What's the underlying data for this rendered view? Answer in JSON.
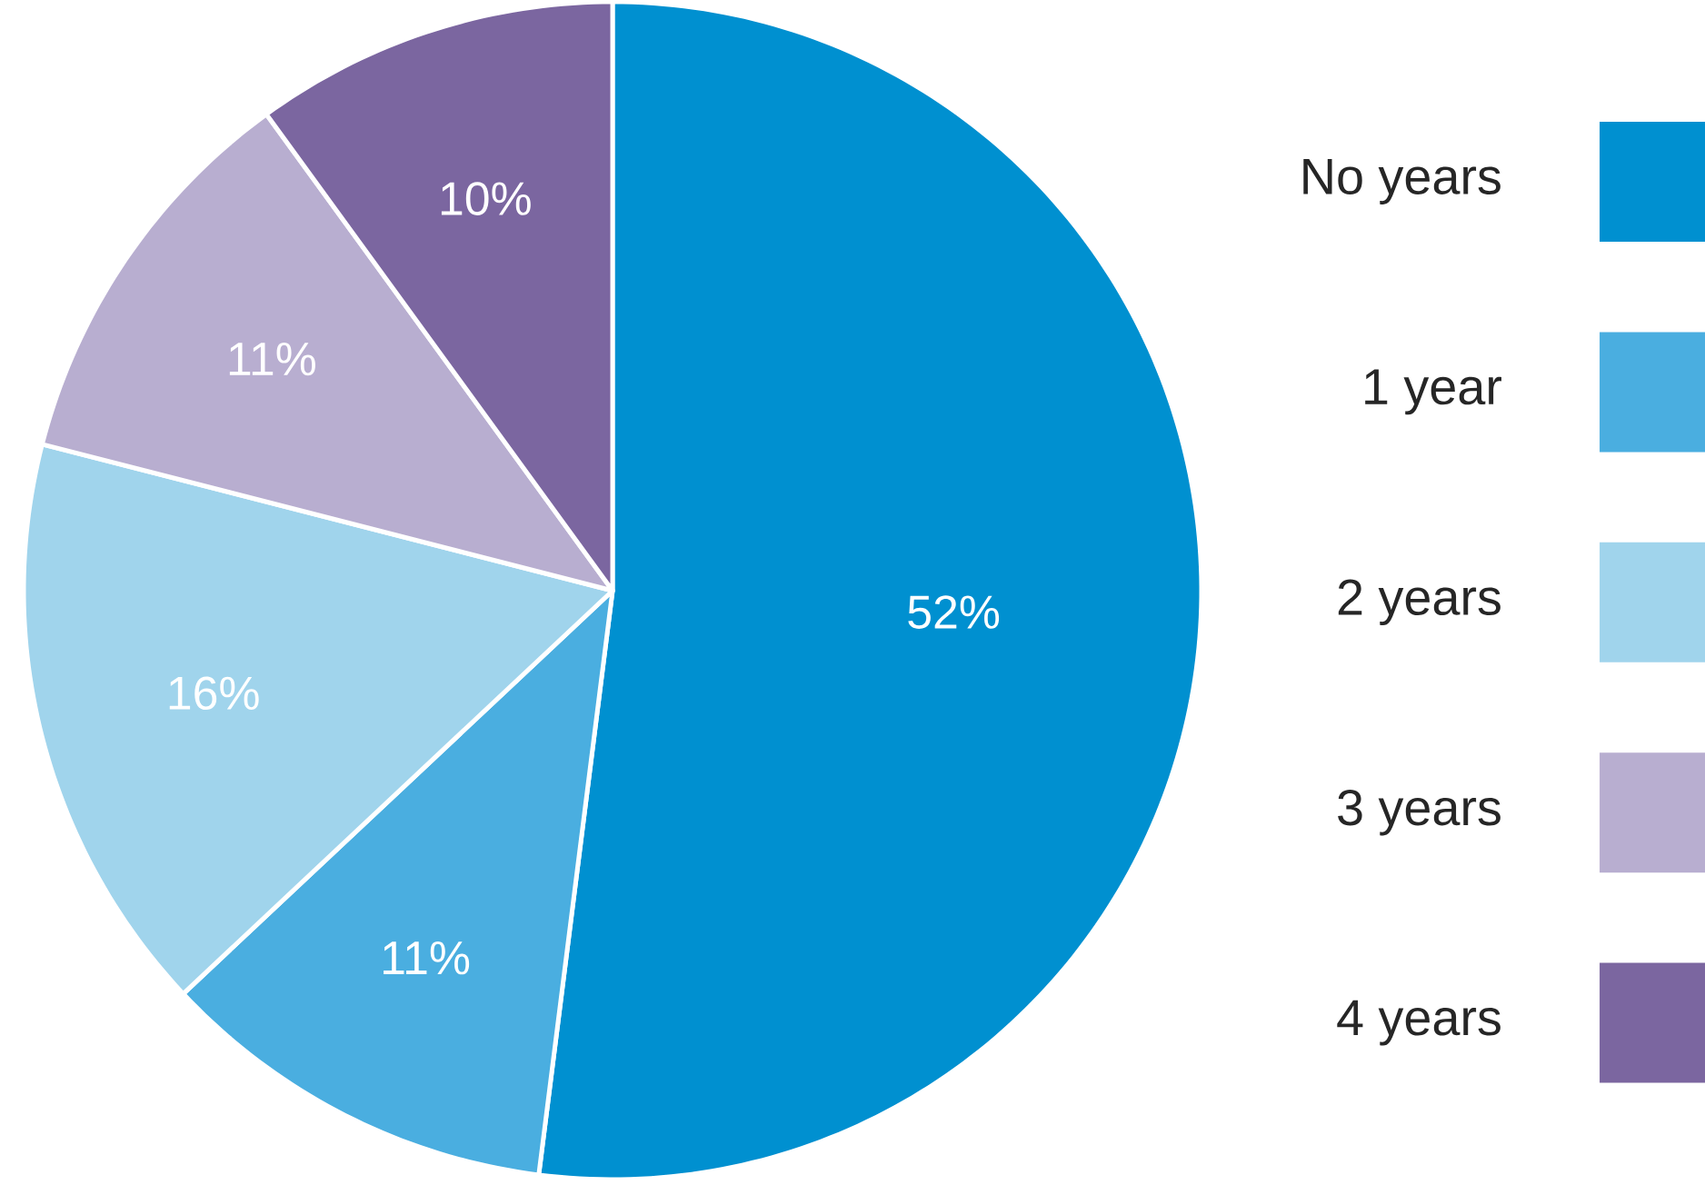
{
  "chart_data": {
    "type": "pie",
    "categories": [
      "No years",
      "1 year",
      "2 years",
      "3 years",
      "4 years"
    ],
    "values": [
      52,
      11,
      16,
      11,
      10
    ],
    "colors": [
      "#0090d0",
      "#4aaee0",
      "#a0d4ec",
      "#b8aed0",
      "#7b66a0"
    ],
    "value_labels": [
      "52%",
      "11%",
      "16%",
      "11%",
      "10%"
    ],
    "legend": "right"
  }
}
